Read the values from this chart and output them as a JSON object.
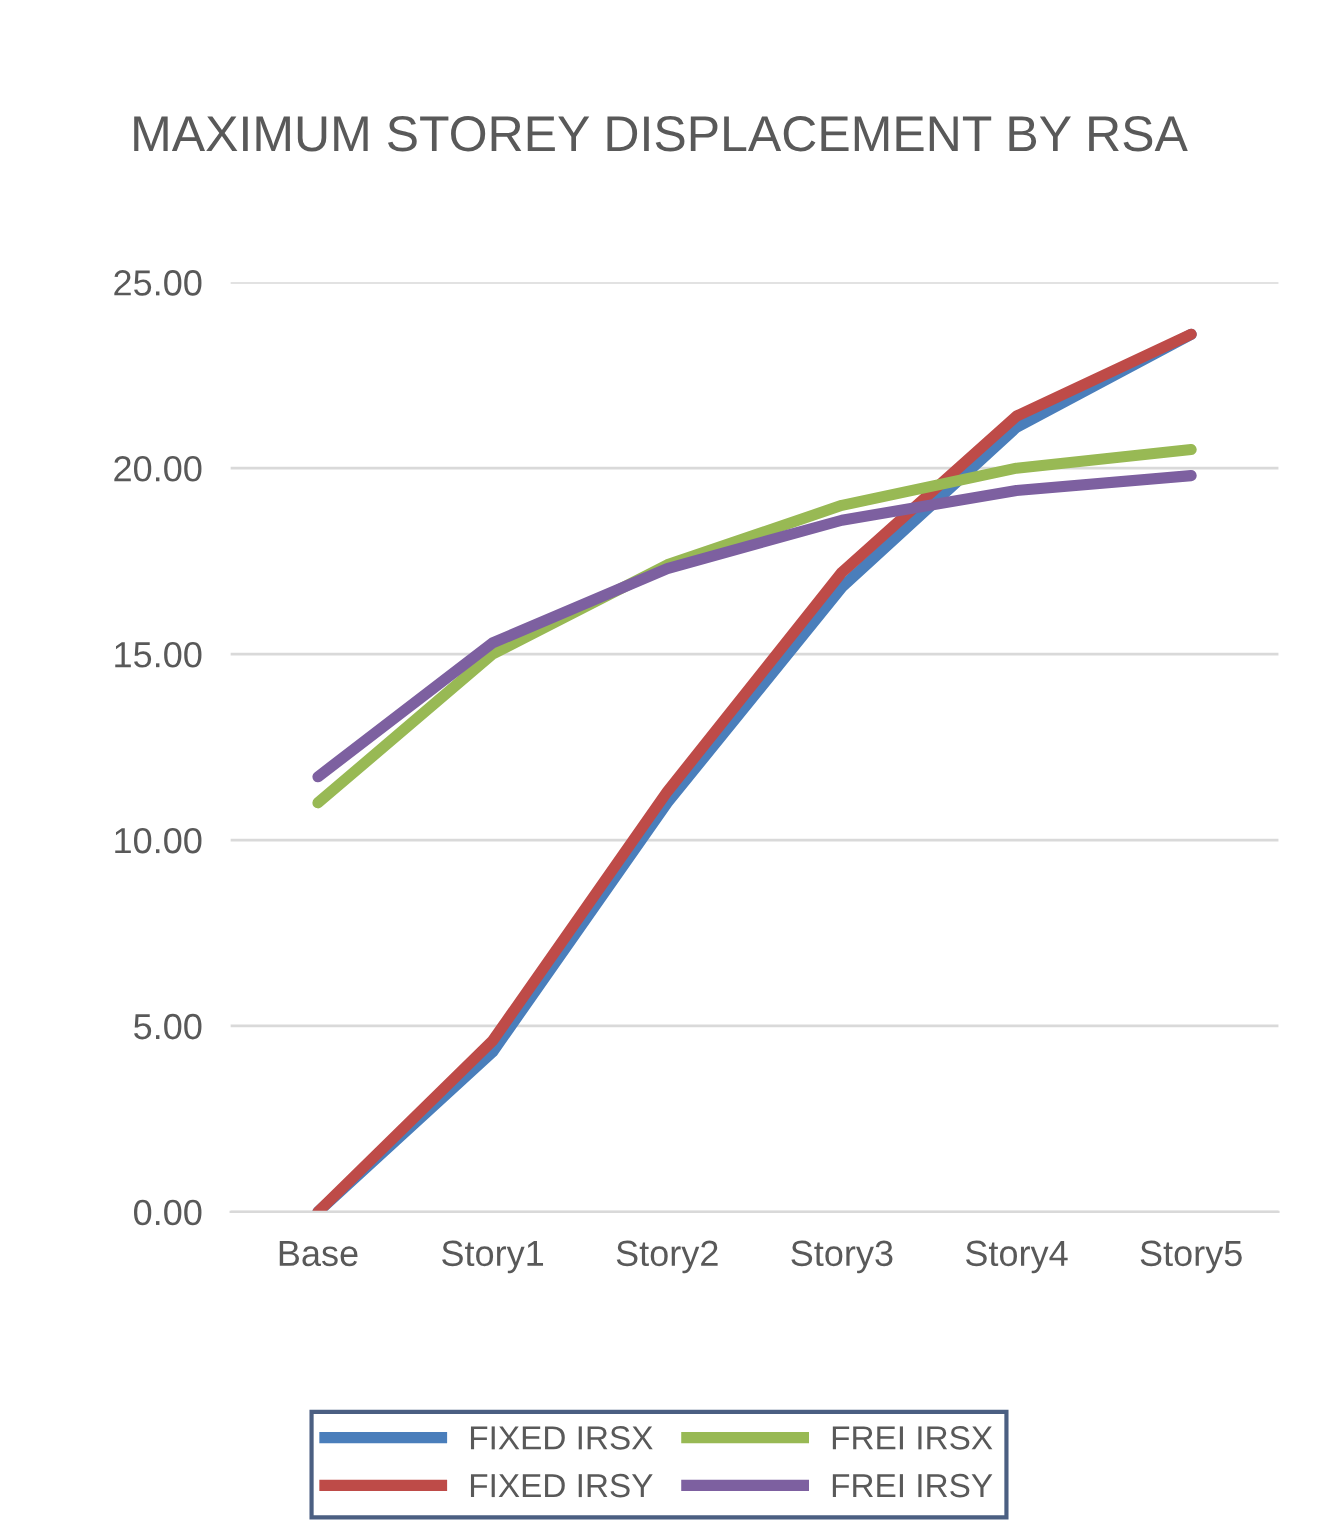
{
  "chart_data": {
    "type": "line",
    "title": "MAXIMUM STOREY DISPLACEMENT BY RSA",
    "categories": [
      "Base",
      "Story1",
      "Story2",
      "Story3",
      "Story4",
      "Story5"
    ],
    "series": [
      {
        "name": "FIXED IRSX",
        "color": "#4a7ebb",
        "values": [
          0,
          4.3,
          11.0,
          16.8,
          21.1,
          23.6
        ]
      },
      {
        "name": "FIXED IRSY",
        "color": "#be4b48",
        "values": [
          0,
          4.6,
          11.3,
          17.2,
          21.4,
          23.6
        ]
      },
      {
        "name": "FREI IRSX",
        "color": "#98b954",
        "values": [
          11.0,
          15.0,
          17.4,
          19.0,
          20.0,
          20.5
        ]
      },
      {
        "name": "FREI IRSY",
        "color": "#7d60a0",
        "values": [
          11.7,
          15.3,
          17.3,
          18.6,
          19.4,
          19.8
        ]
      }
    ],
    "ylim": [
      0,
      25
    ],
    "yticks": [
      {
        "value": 0,
        "label": "0.00"
      },
      {
        "value": 5,
        "label": "5.00"
      },
      {
        "value": 10,
        "label": "10.00"
      },
      {
        "value": 15,
        "label": "15.00"
      },
      {
        "value": 20,
        "label": "20.00"
      },
      {
        "value": 25,
        "label": "25.00"
      }
    ],
    "grid": "y",
    "legend": "bottom",
    "marker": "none",
    "line_style": "solid"
  }
}
